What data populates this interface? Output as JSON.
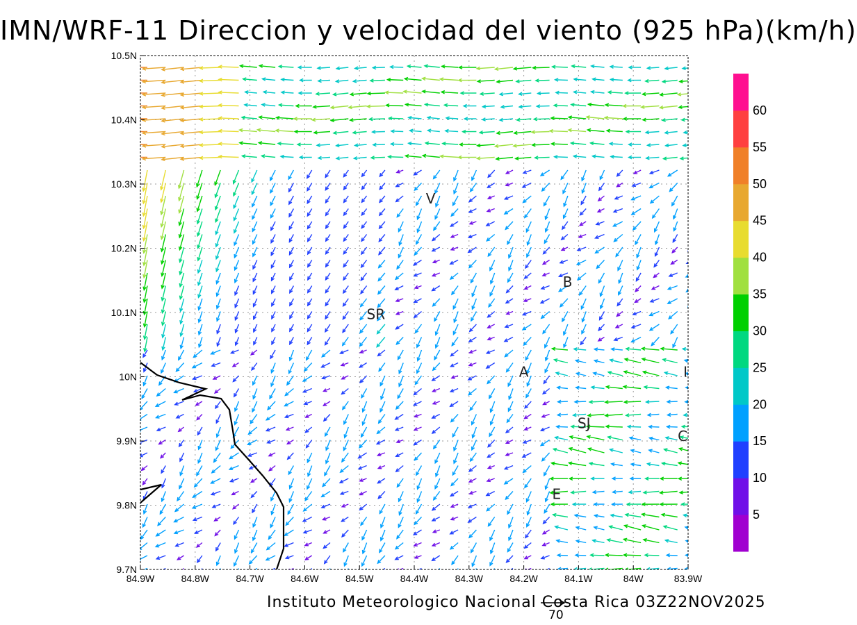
{
  "title": "IMN/WRF-11 Direccion y velocidad del viento (925 hPa)(km/h)",
  "footer": "Instituto Meteorologico Nacional Costa Rica 03Z22NOV2025",
  "reference_vector": {
    "value": "70"
  },
  "map": {
    "lon_range": [
      -84.9,
      -83.9
    ],
    "lat_range": [
      9.7,
      10.5
    ],
    "grid": "dotted",
    "x_tick_labels": [
      "84.9W",
      "84.8W",
      "84.7W",
      "84.6W",
      "84.5W",
      "84.4W",
      "84.3W",
      "84.2W",
      "84.1W",
      "84W",
      "83.9W"
    ],
    "y_tick_labels": [
      "9.7N",
      "9.8N",
      "9.9N",
      "10N",
      "10.1N",
      "10.2N",
      "10.3N",
      "10.4N",
      "10.5N"
    ],
    "places": [
      {
        "label": "V",
        "lon": -84.37,
        "lat": 10.27
      },
      {
        "label": "SR",
        "lon": -84.47,
        "lat": 10.09
      },
      {
        "label": "B",
        "lon": -84.12,
        "lat": 10.14
      },
      {
        "label": "A",
        "lon": -84.2,
        "lat": 10.0
      },
      {
        "label": "SJ",
        "lon": -84.09,
        "lat": 9.92
      },
      {
        "label": "C",
        "lon": -83.91,
        "lat": 9.9
      },
      {
        "label": "E",
        "lon": -84.14,
        "lat": 9.81
      },
      {
        "label": "I",
        "lon": -83.905,
        "lat": 10.0
      }
    ]
  },
  "colorbar": {
    "labels": [
      "5",
      "10",
      "15",
      "20",
      "25",
      "30",
      "35",
      "40",
      "45",
      "50",
      "55",
      "60"
    ],
    "colors": [
      "#a000d0",
      "#7010e8",
      "#2040ff",
      "#00a0ff",
      "#00c8c8",
      "#00d880",
      "#00d000",
      "#a0e040",
      "#e8dc30",
      "#e8a830",
      "#f08028",
      "#ff4040",
      "#ff1090"
    ]
  }
}
